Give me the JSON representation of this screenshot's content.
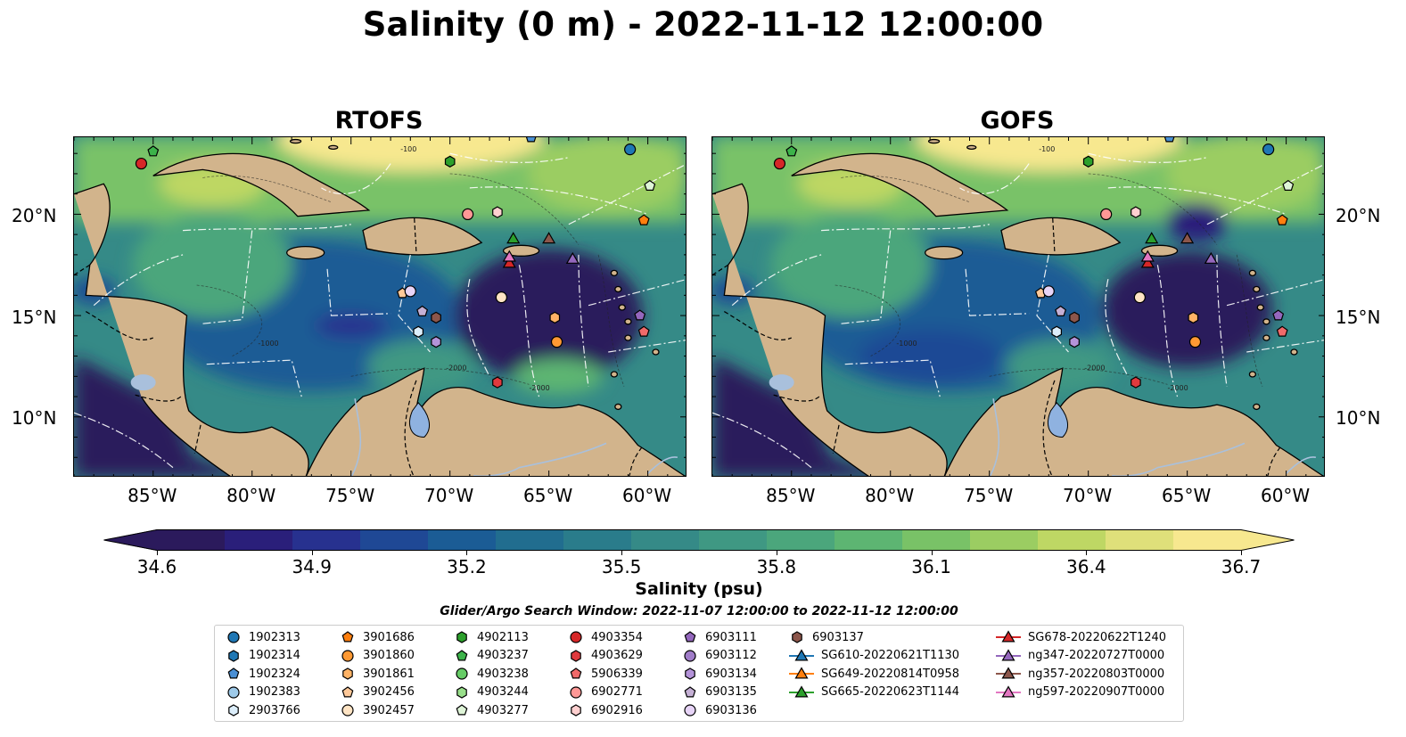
{
  "title": "Salinity (0 m) - 2022-11-12 12:00:00",
  "panels": [
    {
      "name": "RTOFS",
      "variant": "rtofs"
    },
    {
      "name": "GOFS",
      "variant": "gofs"
    }
  ],
  "map": {
    "lon_ticks": [
      "85°W",
      "80°W",
      "75°W",
      "70°W",
      "65°W",
      "60°W"
    ],
    "lat_ticks": [
      "20°N",
      "15°N",
      "10°N"
    ],
    "land_color": "#d2b48c",
    "river_color": "#a9c0dc",
    "lake_color": "#8fb2e0",
    "contour_labels": [
      "-100",
      "-1000",
      "-2000"
    ]
  },
  "colorbar": {
    "label": "Salinity (psu)",
    "ticks": [
      "34.6",
      "34.9",
      "35.2",
      "35.5",
      "35.8",
      "36.1",
      "36.4",
      "36.7"
    ],
    "vmin": 34.6,
    "vmax": 36.7,
    "colors": [
      "#2b1a5c",
      "#2a1f7a",
      "#27318f",
      "#1f4895",
      "#1b5c95",
      "#216d8f",
      "#2a7c8b",
      "#358a87",
      "#3f9883",
      "#4ba67c",
      "#5db572",
      "#79c267",
      "#9bcd62",
      "#bed764",
      "#dfe07a",
      "#f7e88f"
    ]
  },
  "search_window": "Glider/Argo Search Window: 2022-11-07 12:00:00 to 2022-11-12 12:00:00",
  "legend": [
    {
      "label": "1902313",
      "marker": "circle",
      "color": "#1f77b4"
    },
    {
      "label": "1902314",
      "marker": "hexagon",
      "color": "#1f77b4"
    },
    {
      "label": "1902324",
      "marker": "pentagon",
      "color": "#4a8fd4"
    },
    {
      "label": "1902383",
      "marker": "circle",
      "color": "#9ecae9"
    },
    {
      "label": "2903766",
      "marker": "hexagon",
      "color": "#dceefb"
    },
    {
      "label": "3901686",
      "marker": "pentagon",
      "color": "#ff7f0e"
    },
    {
      "label": "3901860",
      "marker": "circle",
      "color": "#ff9933"
    },
    {
      "label": "3901861",
      "marker": "hexagon",
      "color": "#ffb366"
    },
    {
      "label": "3902456",
      "marker": "pentagon",
      "color": "#ffc999"
    },
    {
      "label": "3902457",
      "marker": "circle",
      "color": "#ffe4c4"
    },
    {
      "label": "4902113",
      "marker": "hexagon",
      "color": "#2ca02c"
    },
    {
      "label": "4903237",
      "marker": "pentagon",
      "color": "#3cb34a"
    },
    {
      "label": "4903238",
      "marker": "circle",
      "color": "#66cc66"
    },
    {
      "label": "4903244",
      "marker": "hexagon",
      "color": "#98df8a"
    },
    {
      "label": "4903277",
      "marker": "pentagon",
      "color": "#dff5d8"
    },
    {
      "label": "4903354",
      "marker": "circle",
      "color": "#d62728"
    },
    {
      "label": "4903629",
      "marker": "hexagon",
      "color": "#e03a3e"
    },
    {
      "label": "5906339",
      "marker": "pentagon",
      "color": "#f06a6a"
    },
    {
      "label": "6902771",
      "marker": "circle",
      "color": "#ff9896"
    },
    {
      "label": "6902916",
      "marker": "hexagon",
      "color": "#ffd0d0"
    },
    {
      "label": "6903111",
      "marker": "pentagon",
      "color": "#9467bd"
    },
    {
      "label": "6903112",
      "marker": "circle",
      "color": "#a07cc8"
    },
    {
      "label": "6903134",
      "marker": "hexagon",
      "color": "#b493d9"
    },
    {
      "label": "6903135",
      "marker": "pentagon",
      "color": "#c5b0d5"
    },
    {
      "label": "6903136",
      "marker": "circle",
      "color": "#e7d4f7"
    },
    {
      "label": "6903137",
      "marker": "hexagon",
      "color": "#8c564b"
    },
    {
      "label": "SG610-20220621T1130",
      "marker": "triangle-line",
      "color": "#1f77b4"
    },
    {
      "label": "SG649-20220814T0958",
      "marker": "triangle-line",
      "color": "#ff7f0e"
    },
    {
      "label": "SG665-20220623T1144",
      "marker": "triangle-line",
      "color": "#2ca02c"
    },
    {
      "label": "SG678-20220622T1240",
      "marker": "triangle-line",
      "color": "#d62728"
    },
    {
      "label": "ng347-20220727T0000",
      "marker": "triangle-line",
      "color": "#9467bd"
    },
    {
      "label": "ng357-20220803T0000",
      "marker": "triangle-line",
      "color": "#8c564b"
    },
    {
      "label": "ng597-20220907T0000",
      "marker": "triangle-line",
      "color": "#e377c2"
    }
  ],
  "observations": [
    {
      "id": "1902313",
      "lon": -60.9,
      "lat": 23.2
    },
    {
      "id": "1902324",
      "lon": -65.9,
      "lat": 23.8
    },
    {
      "id": "4903354",
      "lon": -85.6,
      "lat": 22.5
    },
    {
      "id": "4903237",
      "lon": -85.0,
      "lat": 23.1
    },
    {
      "id": "4902113",
      "lon": -70.0,
      "lat": 22.6
    },
    {
      "id": "4903277",
      "lon": -59.9,
      "lat": 21.4
    },
    {
      "id": "3901686",
      "lon": -60.2,
      "lat": 19.7
    },
    {
      "id": "6902771",
      "lon": -69.1,
      "lat": 20.0
    },
    {
      "id": "6902916",
      "lon": -67.6,
      "lat": 20.1
    },
    {
      "id": "3902456",
      "lon": -72.4,
      "lat": 16.1
    },
    {
      "id": "6903136",
      "lon": -72.0,
      "lat": 16.2
    },
    {
      "id": "3902457",
      "lon": -67.4,
      "lat": 15.9
    },
    {
      "id": "6903135",
      "lon": -71.4,
      "lat": 15.2
    },
    {
      "id": "6903137",
      "lon": -70.7,
      "lat": 14.9
    },
    {
      "id": "6903134",
      "lon": -70.7,
      "lat": 13.7
    },
    {
      "id": "2903766",
      "lon": -71.6,
      "lat": 14.2
    },
    {
      "id": "3901861",
      "lon": -64.7,
      "lat": 14.9
    },
    {
      "id": "3901860",
      "lon": -64.6,
      "lat": 13.7
    },
    {
      "id": "6903111",
      "lon": -60.4,
      "lat": 15.0
    },
    {
      "id": "5906339",
      "lon": -60.2,
      "lat": 14.2
    },
    {
      "id": "4903629",
      "lon": -67.6,
      "lat": 11.7
    },
    {
      "id": "SG665-20220623T1144",
      "lon": -66.8,
      "lat": 18.8
    },
    {
      "id": "SG678-20220622T1240",
      "lon": -67.0,
      "lat": 17.6
    },
    {
      "id": "ng597-20220907T0000",
      "lon": -67.0,
      "lat": 17.9
    },
    {
      "id": "ng357-20220803T0000",
      "lon": -65.0,
      "lat": 18.8
    },
    {
      "id": "ng347-20220727T0000",
      "lon": -63.8,
      "lat": 17.8
    }
  ]
}
